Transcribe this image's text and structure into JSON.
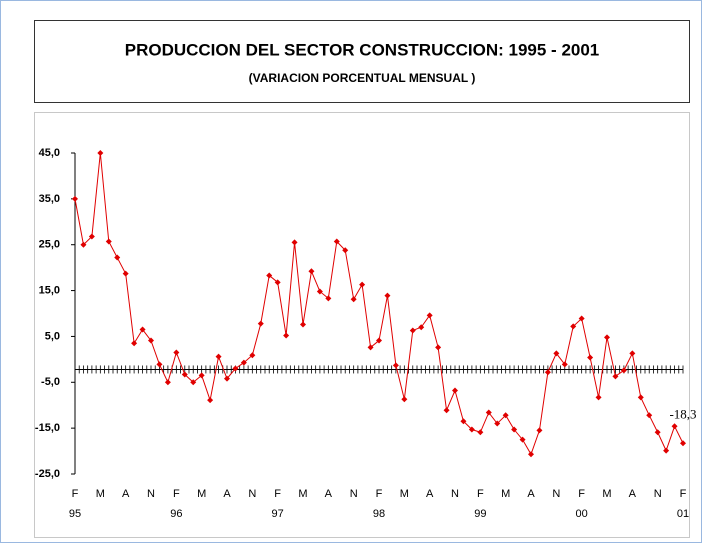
{
  "chart_data": {
    "type": "line",
    "title": "PRODUCCION DEL SECTOR CONSTRUCCION: 1995 - 2001",
    "subtitle": "(VARIACION PORCENTUAL MENSUAL )",
    "categories": [
      "F",
      null,
      null,
      "M",
      null,
      null,
      "A",
      null,
      null,
      "N",
      null,
      null,
      "F",
      null,
      null,
      "M",
      null,
      null,
      "A",
      null,
      null,
      "N",
      null,
      null,
      "F",
      null,
      null,
      "M",
      null,
      null,
      "A",
      null,
      null,
      "N",
      null,
      null,
      "F",
      null,
      null,
      "M",
      null,
      null,
      "A",
      null,
      null,
      "N",
      null,
      null,
      "F",
      null,
      null,
      "M",
      null,
      null,
      "A",
      null,
      null,
      "N",
      null,
      null,
      "F",
      null,
      null,
      "M",
      null,
      null,
      "A",
      null,
      null,
      "N",
      null,
      null,
      "F"
    ],
    "category_years": [
      "95",
      null,
      null,
      null,
      null,
      null,
      null,
      null,
      null,
      null,
      null,
      null,
      "96",
      null,
      null,
      null,
      null,
      null,
      null,
      null,
      null,
      null,
      null,
      null,
      "97",
      null,
      null,
      null,
      null,
      null,
      null,
      null,
      null,
      null,
      null,
      null,
      "98",
      null,
      null,
      null,
      null,
      null,
      null,
      null,
      null,
      null,
      null,
      null,
      "99",
      null,
      null,
      null,
      null,
      null,
      null,
      null,
      null,
      null,
      null,
      null,
      "00",
      null,
      null,
      null,
      null,
      null,
      null,
      null,
      null,
      null,
      null,
      null,
      "01"
    ],
    "series": [
      {
        "color": "#e00000",
        "values": [
          35,
          25,
          26.8,
          45,
          25.7,
          22.2,
          18.7,
          3.5,
          6.5,
          4.1,
          -1.1,
          -5,
          1.5,
          -3.3,
          -5,
          -3.5,
          -8.9,
          0.6,
          -4.2,
          -2,
          -0.7,
          0.9,
          7.8,
          18.3,
          16.8,
          5.2,
          25.5,
          7.6,
          19.2,
          14.8,
          13.3,
          25.7,
          23.8,
          13.1,
          16.3,
          2.6,
          4.1,
          13.9,
          -1.3,
          -8.7,
          6.3,
          7,
          9.6,
          2.6,
          -11.1,
          -6.8,
          -13.5,
          -15.3,
          -15.9,
          -11.6,
          -14,
          -12.2,
          -15.3,
          -17.5,
          -20.7,
          -15.5,
          -2.8,
          1.3,
          -1.1,
          7.2,
          8.9,
          0.4,
          -8.3,
          4.8,
          -3.7,
          -2.4,
          1.3,
          -8.3,
          -12.2,
          -15.9,
          -19.9,
          -14.6,
          -18.3
        ],
        "value_labels": [
          null,
          null,
          null,
          null,
          null,
          null,
          null,
          null,
          null,
          null,
          null,
          null,
          null,
          null,
          null,
          null,
          null,
          null,
          null,
          null,
          null,
          null,
          null,
          null,
          null,
          null,
          null,
          null,
          null,
          null,
          null,
          null,
          null,
          null,
          null,
          null,
          null,
          null,
          null,
          null,
          null,
          null,
          null,
          null,
          null,
          null,
          null,
          null,
          null,
          null,
          null,
          null,
          null,
          null,
          null,
          null,
          null,
          null,
          null,
          null,
          null,
          null,
          null,
          null,
          null,
          null,
          null,
          null,
          null,
          null,
          null,
          null,
          "-18,3"
        ]
      }
    ],
    "ylim": [
      -25,
      45
    ],
    "yticks": [
      {
        "value": 45,
        "label": "45,0"
      },
      {
        "value": 35,
        "label": "35,0"
      },
      {
        "value": 25,
        "label": "25,0"
      },
      {
        "value": 15,
        "label": "15,0"
      },
      {
        "value": 5,
        "label": "5,0"
      },
      {
        "value": -5,
        "label": "-5,0"
      },
      {
        "value": -15,
        "label": "-15,0"
      },
      {
        "value": -25,
        "label": "-25,0"
      }
    ],
    "x_axis_crosses_at": -2.2,
    "grid": false
  }
}
